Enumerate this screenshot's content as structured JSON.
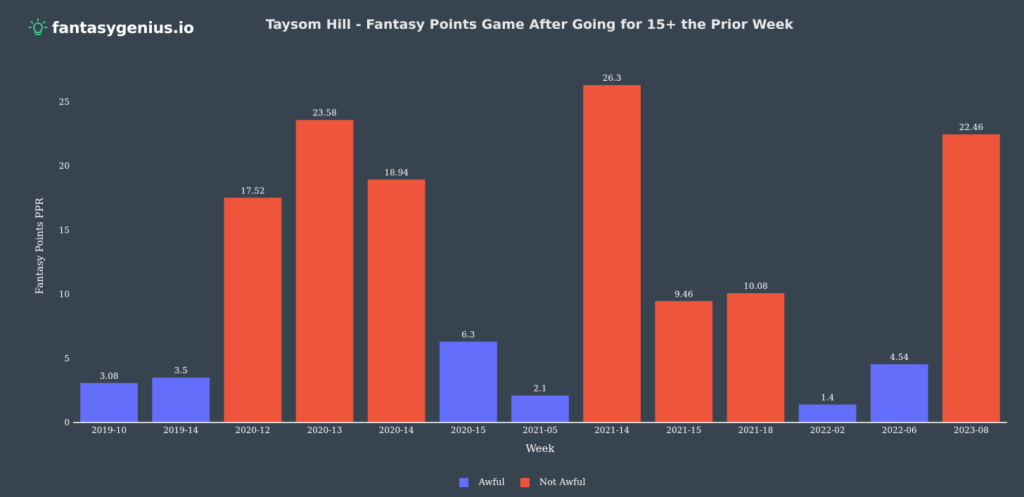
{
  "logo": {
    "text": "fantasygenius.io",
    "icon": "lightbulb-icon",
    "icon_color": "#3ecf8e"
  },
  "chart_data": {
    "type": "bar",
    "title": "Taysom Hill - Fantasy Points Game After Going for 15+ the Prior Week",
    "xlabel": "Week",
    "ylabel": "Fantasy Points PPR",
    "ylim": [
      0,
      28
    ],
    "yticks": [
      0,
      5,
      10,
      15,
      20,
      25
    ],
    "grid": false,
    "legend_position": "bottom-center",
    "categories": [
      "2019-10",
      "2019-14",
      "2020-12",
      "2020-13",
      "2020-14",
      "2020-15",
      "2021-05",
      "2021-14",
      "2021-15",
      "2021-18",
      "2022-02",
      "2022-06",
      "2023-08"
    ],
    "values": [
      3.08,
      3.5,
      17.52,
      23.58,
      18.94,
      6.3,
      2.1,
      26.3,
      9.46,
      10.08,
      1.4,
      4.54,
      22.46
    ],
    "value_labels": [
      "3.08",
      "3.5",
      "17.52",
      "23.58",
      "18.94",
      "6.3",
      "2.1",
      "26.3",
      "9.46",
      "10.08",
      "1.4",
      "4.54",
      "22.46"
    ],
    "groups": [
      "Awful",
      "Awful",
      "Not Awful",
      "Not Awful",
      "Not Awful",
      "Awful",
      "Awful",
      "Not Awful",
      "Not Awful",
      "Not Awful",
      "Awful",
      "Awful",
      "Not Awful"
    ],
    "series": [
      {
        "name": "Awful",
        "color": "#636efa"
      },
      {
        "name": "Not Awful",
        "color": "#ef553b"
      }
    ]
  }
}
